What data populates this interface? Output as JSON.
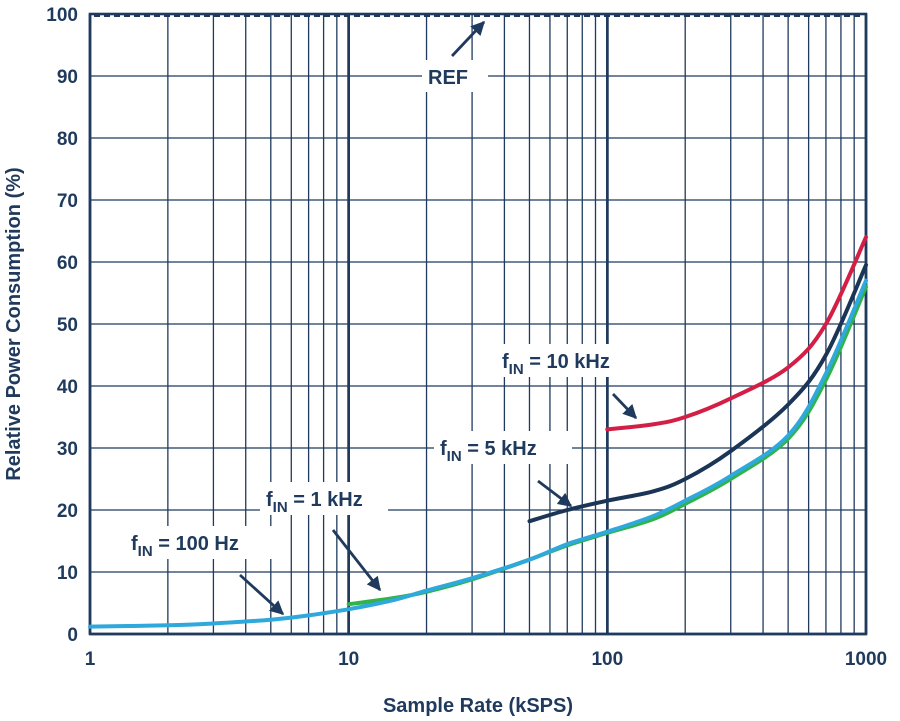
{
  "chart_data": {
    "type": "line",
    "x_scale": "log",
    "xlim": [
      1,
      1000
    ],
    "ylim": [
      0,
      100
    ],
    "grid": true,
    "xlabel": "Sample Rate (kSPS)",
    "ylabel": "Relative Power Consumption (%)",
    "x_ticks": [
      "1",
      "10",
      "100",
      "1000"
    ],
    "y_ticks": [
      "0",
      "10",
      "20",
      "30",
      "40",
      "50",
      "60",
      "70",
      "80",
      "90",
      "100"
    ],
    "reference": {
      "label": "REF",
      "y": 100,
      "color": "#1f3a5c"
    },
    "series": [
      {
        "name": "fIN = 100 Hz",
        "label_main": "f",
        "label_sub": "IN",
        "label_rest": " = 100 Hz",
        "color": "#2fa8dc",
        "points": [
          [
            1,
            1.2
          ],
          [
            2,
            1.4
          ],
          [
            3,
            1.7
          ],
          [
            5,
            2.3
          ],
          [
            7,
            3.0
          ],
          [
            10,
            4.0
          ],
          [
            15,
            5.5
          ],
          [
            20,
            7.0
          ],
          [
            30,
            9.0
          ],
          [
            50,
            12.0
          ],
          [
            70,
            14.5
          ],
          [
            100,
            16.5
          ],
          [
            150,
            19.0
          ],
          [
            200,
            21.5
          ],
          [
            300,
            25.5
          ],
          [
            500,
            32.0
          ],
          [
            700,
            42.0
          ],
          [
            1000,
            57.0
          ]
        ]
      },
      {
        "name": "fIN = 1 kHz",
        "label_main": "f",
        "label_sub": "IN",
        "label_rest": " = 1 kHz",
        "color": "#2fb34a",
        "points": [
          [
            10,
            4.8
          ],
          [
            15,
            5.8
          ],
          [
            20,
            6.8
          ],
          [
            30,
            8.8
          ],
          [
            50,
            12.0
          ],
          [
            70,
            14.3
          ],
          [
            100,
            16.3
          ],
          [
            150,
            18.5
          ],
          [
            200,
            21.0
          ],
          [
            300,
            25.0
          ],
          [
            500,
            31.5
          ],
          [
            700,
            41.0
          ],
          [
            1000,
            56.0
          ]
        ]
      },
      {
        "name": "fIN = 5 kHz",
        "label_main": "f",
        "label_sub": "IN",
        "label_rest": " = 5 kHz",
        "color": "#1b3556",
        "points": [
          [
            50,
            18.2
          ],
          [
            70,
            20.0
          ],
          [
            100,
            21.5
          ],
          [
            150,
            23.0
          ],
          [
            200,
            25.0
          ],
          [
            300,
            29.5
          ],
          [
            500,
            37.0
          ],
          [
            700,
            45.0
          ],
          [
            1000,
            59.5
          ]
        ]
      },
      {
        "name": "fIN = 10 kHz",
        "label_main": "f",
        "label_sub": "IN",
        "label_rest": " = 10 kHz",
        "color": "#d31f45",
        "points": [
          [
            100,
            33.0
          ],
          [
            150,
            33.8
          ],
          [
            200,
            35.0
          ],
          [
            300,
            38.0
          ],
          [
            500,
            43.0
          ],
          [
            700,
            50.0
          ],
          [
            1000,
            64.0
          ]
        ]
      }
    ]
  }
}
